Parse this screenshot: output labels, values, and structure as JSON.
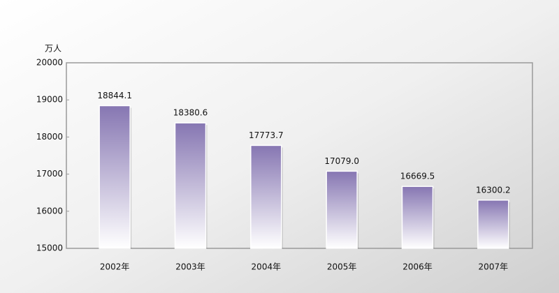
{
  "chart_data": {
    "type": "bar",
    "y_axis_label": "万人",
    "categories": [
      "2002年",
      "2003年",
      "2004年",
      "2005年",
      "2006年",
      "2007年"
    ],
    "values": [
      18844.1,
      18380.6,
      17773.7,
      17079.0,
      16669.5,
      16300.2
    ],
    "value_labels": [
      "18844.1",
      "18380.6",
      "17773.7",
      "17079.0",
      "16669.5",
      "16300.2"
    ],
    "color": "#8676b2",
    "ylim": [
      15000,
      20000
    ],
    "yticks": [
      15000,
      16000,
      17000,
      18000,
      19000,
      20000
    ],
    "grid": false
  }
}
